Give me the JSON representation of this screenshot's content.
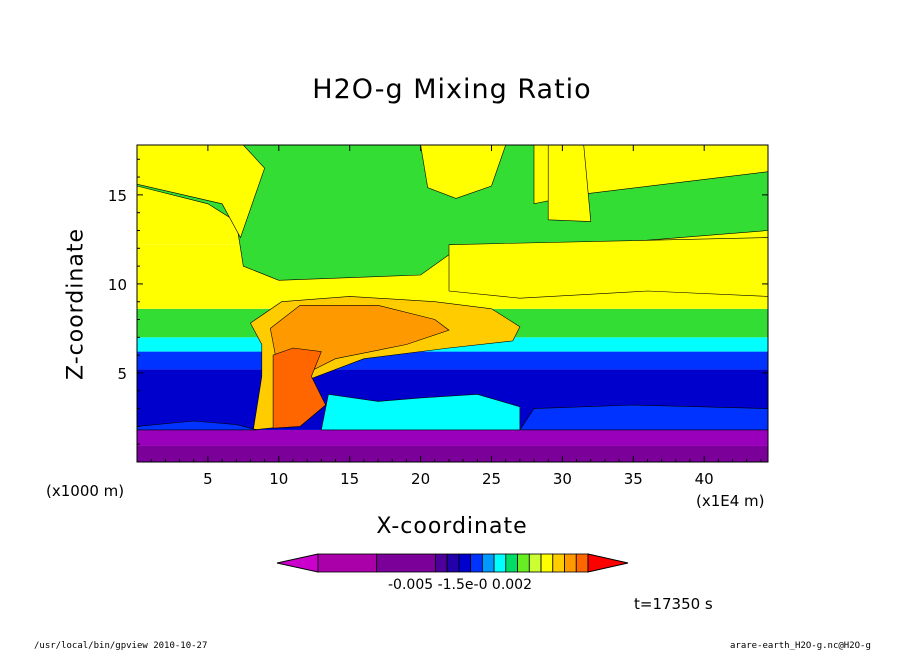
{
  "chart_data": {
    "type": "contour",
    "title": "H2O-g Mixing Ratio",
    "xlabel": "X-coordinate",
    "ylabel": "Z-coordinate",
    "x_unit_label": "(x1000 m)",
    "x_unit_label_right": "(x1E4 m)",
    "xlim": [
      0,
      44.5
    ],
    "ylim": [
      0,
      17.8
    ],
    "xticks": [
      "5",
      "10",
      "15",
      "20",
      "25",
      "30",
      "35",
      "40"
    ],
    "yticks": [
      "5",
      "10",
      "15"
    ],
    "colorbar_labels": "-0.005 -1.5e-0  0.002",
    "colorbar_colors": [
      "#cc00cc",
      "#aa00aa",
      "#7a0099",
      "#4d0099",
      "#2200aa",
      "#0000cc",
      "#0033ff",
      "#0099ff",
      "#00ffff",
      "#00dd66",
      "#66ee22",
      "#ccff33",
      "#ffff00",
      "#ffcc00",
      "#ff9900",
      "#ff6600",
      "#ff0000"
    ],
    "annotation": "t=17350 s",
    "field_colors": {
      "surface_purple": "#7a0099",
      "deep_blue": "#0000cc",
      "mid_blue": "#0033ff",
      "cyan": "#00ffff",
      "green": "#33dd33",
      "yellow_green": "#ccff33",
      "yellow": "#ffff00",
      "orange_light": "#ffcc00",
      "orange": "#ff9900",
      "orange_dark": "#ff6600"
    }
  },
  "footer": {
    "left": "/usr/local/bin/gpview  2010-10-27",
    "right": "arare-earth_H2O-g.nc@H2O-g"
  }
}
